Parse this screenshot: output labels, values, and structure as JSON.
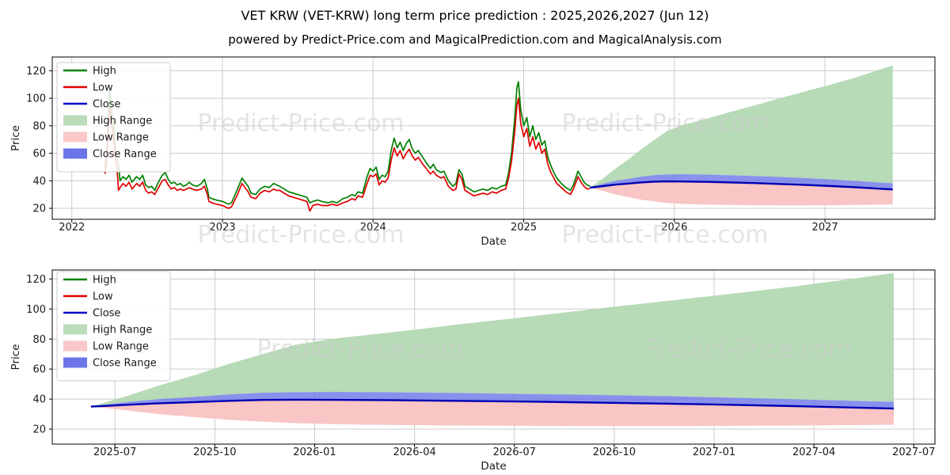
{
  "header": {
    "title": "VET KRW (VET-KRW) long term price prediction : 2025,2026,2027 (Jun 12)",
    "subtitle": "powered by Predict-Price.com and MagicalPrediction.com and MagicalAnalysis.com"
  },
  "watermark_text": "Predict-Price.com",
  "colors": {
    "high": "#008000",
    "low": "#e00000",
    "close": "#0000cd",
    "pred_close": "#0000b3",
    "high_range": "#b3d8b3",
    "low_range": "#f9c2c2",
    "close_range": "#6b76e8",
    "grid": "#cccccc",
    "axis": "#000000",
    "watermark": "#cdcdcd",
    "tick_text": "#1a1a1a"
  },
  "chart_data": [
    {
      "type": "line",
      "name": "full-history-and-prediction",
      "xlabel": "Date",
      "ylabel": "Price",
      "xlim": [
        2021.87,
        2027.73
      ],
      "ylim": [
        12,
        130
      ],
      "grid": true,
      "legend_position": "upper-left",
      "xticks": {
        "values": [
          2022,
          2023,
          2024,
          2025,
          2026,
          2027
        ],
        "labels": [
          "2022",
          "2023",
          "2024",
          "2025",
          "2026",
          "2027"
        ]
      },
      "yticks": [
        20,
        40,
        60,
        80,
        100,
        120
      ],
      "legend": [
        {
          "label": "High",
          "swatch": "line",
          "color": "#008000"
        },
        {
          "label": "Low",
          "swatch": "line",
          "color": "#e00000"
        },
        {
          "label": "Close",
          "swatch": "line",
          "color": "#0000cd"
        },
        {
          "label": "High Range",
          "swatch": "patch",
          "color": "#b3d8b3"
        },
        {
          "label": "Low Range",
          "swatch": "patch",
          "color": "#f9c2c2"
        },
        {
          "label": "Close Range",
          "swatch": "patch",
          "color": "#5b66e6"
        }
      ],
      "history_t_high_low": [
        [
          2022.22,
          50,
          45
        ],
        [
          2022.23,
          60,
          54
        ],
        [
          2022.24,
          80,
          70
        ],
        [
          2022.25,
          106,
          94
        ],
        [
          2022.26,
          97,
          86
        ],
        [
          2022.27,
          86,
          76
        ],
        [
          2022.28,
          78,
          68
        ],
        [
          2022.29,
          62,
          55
        ],
        [
          2022.3,
          56,
          49
        ],
        [
          2022.31,
          52,
          33
        ],
        [
          2022.32,
          40,
          35
        ],
        [
          2022.34,
          43,
          38
        ],
        [
          2022.36,
          41,
          36
        ],
        [
          2022.38,
          44,
          39
        ],
        [
          2022.4,
          39,
          34
        ],
        [
          2022.43,
          43,
          38
        ],
        [
          2022.45,
          41,
          36
        ],
        [
          2022.47,
          44,
          39
        ],
        [
          2022.49,
          37,
          33
        ],
        [
          2022.51,
          35,
          31
        ],
        [
          2022.53,
          36,
          32
        ],
        [
          2022.55,
          33,
          30
        ],
        [
          2022.57,
          38,
          34
        ],
        [
          2022.6,
          44,
          40
        ],
        [
          2022.62,
          46,
          41
        ],
        [
          2022.64,
          41,
          37
        ],
        [
          2022.66,
          38,
          34
        ],
        [
          2022.68,
          39,
          35
        ],
        [
          2022.7,
          37,
          33
        ],
        [
          2022.72,
          38,
          34
        ],
        [
          2022.74,
          36,
          33
        ],
        [
          2022.76,
          37,
          34
        ],
        [
          2022.78,
          39,
          35
        ],
        [
          2022.8,
          37,
          34
        ],
        [
          2022.83,
          36,
          33
        ],
        [
          2022.86,
          38,
          34
        ],
        [
          2022.88,
          41,
          36
        ],
        [
          2022.9,
          34,
          30
        ],
        [
          2022.91,
          28,
          25
        ],
        [
          2022.93,
          27,
          24
        ],
        [
          2022.96,
          26,
          23
        ],
        [
          2023.0,
          25,
          22
        ],
        [
          2023.04,
          23,
          20
        ],
        [
          2023.06,
          24,
          21
        ],
        [
          2023.1,
          34,
          30
        ],
        [
          2023.13,
          42,
          38
        ],
        [
          2023.15,
          39,
          35
        ],
        [
          2023.17,
          36,
          32
        ],
        [
          2023.19,
          31,
          28
        ],
        [
          2023.22,
          30,
          27
        ],
        [
          2023.25,
          34,
          31
        ],
        [
          2023.28,
          36,
          33
        ],
        [
          2023.31,
          35,
          32
        ],
        [
          2023.34,
          38,
          34
        ],
        [
          2023.36,
          37,
          33
        ],
        [
          2023.38,
          36,
          33
        ],
        [
          2023.41,
          34,
          31
        ],
        [
          2023.44,
          32,
          29
        ],
        [
          2023.47,
          31,
          28
        ],
        [
          2023.5,
          30,
          27
        ],
        [
          2023.53,
          29,
          26
        ],
        [
          2023.56,
          28,
          25
        ],
        [
          2023.58,
          24,
          18
        ],
        [
          2023.6,
          25,
          22
        ],
        [
          2023.63,
          26,
          23
        ],
        [
          2023.66,
          25,
          22
        ],
        [
          2023.7,
          24,
          22
        ],
        [
          2023.73,
          25,
          23
        ],
        [
          2023.76,
          24,
          22
        ],
        [
          2023.8,
          27,
          24
        ],
        [
          2023.83,
          28,
          25
        ],
        [
          2023.86,
          30,
          27
        ],
        [
          2023.88,
          29,
          26
        ],
        [
          2023.9,
          32,
          29
        ],
        [
          2023.93,
          31,
          28
        ],
        [
          2023.96,
          43,
          38
        ],
        [
          2023.98,
          49,
          44
        ],
        [
          2024.0,
          47,
          43
        ],
        [
          2024.02,
          50,
          45
        ],
        [
          2024.04,
          41,
          37
        ],
        [
          2024.06,
          44,
          40
        ],
        [
          2024.08,
          43,
          39
        ],
        [
          2024.1,
          47,
          42
        ],
        [
          2024.12,
          62,
          55
        ],
        [
          2024.14,
          71,
          64
        ],
        [
          2024.16,
          64,
          58
        ],
        [
          2024.18,
          68,
          62
        ],
        [
          2024.2,
          62,
          56
        ],
        [
          2024.22,
          67,
          60
        ],
        [
          2024.24,
          70,
          63
        ],
        [
          2024.26,
          63,
          58
        ],
        [
          2024.28,
          60,
          55
        ],
        [
          2024.3,
          62,
          57
        ],
        [
          2024.33,
          57,
          52
        ],
        [
          2024.36,
          52,
          48
        ],
        [
          2024.38,
          49,
          45
        ],
        [
          2024.4,
          52,
          47
        ],
        [
          2024.42,
          48,
          44
        ],
        [
          2024.45,
          46,
          42
        ],
        [
          2024.47,
          47,
          43
        ],
        [
          2024.5,
          40,
          36
        ],
        [
          2024.53,
          36,
          33
        ],
        [
          2024.55,
          38,
          34
        ],
        [
          2024.57,
          48,
          45
        ],
        [
          2024.59,
          45,
          41
        ],
        [
          2024.61,
          36,
          33
        ],
        [
          2024.64,
          34,
          31
        ],
        [
          2024.67,
          32,
          29
        ],
        [
          2024.7,
          33,
          30
        ],
        [
          2024.73,
          34,
          31
        ],
        [
          2024.76,
          33,
          30
        ],
        [
          2024.79,
          35,
          32
        ],
        [
          2024.82,
          34,
          31
        ],
        [
          2024.85,
          36,
          33
        ],
        [
          2024.88,
          37,
          34
        ],
        [
          2024.9,
          46,
          42
        ],
        [
          2024.92,
          61,
          55
        ],
        [
          2024.94,
          85,
          75
        ],
        [
          2024.955,
          108,
          95
        ],
        [
          2024.965,
          112,
          100
        ],
        [
          2024.98,
          92,
          82
        ],
        [
          2025.0,
          80,
          72
        ],
        [
          2025.02,
          86,
          78
        ],
        [
          2025.04,
          72,
          65
        ],
        [
          2025.06,
          80,
          72
        ],
        [
          2025.08,
          70,
          63
        ],
        [
          2025.1,
          75,
          68
        ],
        [
          2025.12,
          66,
          60
        ],
        [
          2025.14,
          69,
          63
        ],
        [
          2025.16,
          57,
          52
        ],
        [
          2025.18,
          51,
          46
        ],
        [
          2025.2,
          46,
          42
        ],
        [
          2025.22,
          42,
          38
        ],
        [
          2025.25,
          38,
          35
        ],
        [
          2025.28,
          35,
          32
        ],
        [
          2025.31,
          33,
          30
        ],
        [
          2025.33,
          37,
          34
        ],
        [
          2025.36,
          47,
          43
        ],
        [
          2025.38,
          43,
          39
        ],
        [
          2025.4,
          39,
          36
        ],
        [
          2025.42,
          37,
          34
        ],
        [
          2025.44,
          36,
          34.5
        ]
      ],
      "prediction": {
        "t": [
          2025.44,
          2025.53,
          2025.61,
          2025.7,
          2025.78,
          2025.87,
          2025.95,
          2026.04,
          2026.21,
          2026.37,
          2026.54,
          2026.7,
          2026.87,
          2027.04,
          2027.2,
          2027.37,
          2027.45
        ],
        "close": [
          35,
          36.2,
          37.2,
          38,
          38.8,
          39.4,
          39.6,
          39.5,
          39.2,
          38.8,
          38.3,
          37.7,
          37,
          36.2,
          35.3,
          34.2,
          33.7
        ],
        "close_upper": [
          35,
          38,
          40,
          41.5,
          43,
          44.2,
          44.6,
          44.8,
          44.5,
          44,
          43.4,
          42.8,
          42,
          41,
          39.9,
          38.7,
          38.2
        ],
        "high_upper": [
          35,
          42,
          49,
          56,
          63,
          70,
          76,
          80,
          85,
          90,
          95,
          100,
          105,
          110,
          115,
          121,
          124
        ],
        "low_lower": [
          35,
          32.5,
          30,
          28,
          26.3,
          25,
          24,
          23.3,
          22.7,
          22.4,
          22.2,
          22.1,
          22.1,
          22.2,
          22.4,
          22.7,
          22.9
        ]
      }
    },
    {
      "type": "line",
      "name": "prediction-zoom",
      "xlabel": "Date",
      "ylabel": "Price",
      "xlim": [
        2025.343,
        2027.553
      ],
      "ylim": [
        10,
        126
      ],
      "grid": true,
      "legend_position": "upper-left",
      "xticks": {
        "values": [
          2025.5,
          2025.75,
          2026.0,
          2026.25,
          2026.5,
          2026.75,
          2027.0,
          2027.25,
          2027.5
        ],
        "labels": [
          "2025-07",
          "2025-10",
          "2026-01",
          "2026-04",
          "2026-07",
          "2026-10",
          "2027-01",
          "2027-04",
          "2027-07"
        ]
      },
      "yticks": [
        20,
        40,
        60,
        80,
        100,
        120
      ],
      "legend": [
        {
          "label": "High",
          "swatch": "line",
          "color": "#008000"
        },
        {
          "label": "Low",
          "swatch": "line",
          "color": "#e00000"
        },
        {
          "label": "Close",
          "swatch": "line",
          "color": "#0000cd"
        },
        {
          "label": "High Range",
          "swatch": "patch",
          "color": "#b3d8b3"
        },
        {
          "label": "Low Range",
          "swatch": "patch",
          "color": "#f9c2c2"
        },
        {
          "label": "Close Range",
          "swatch": "patch",
          "color": "#5b66e6"
        }
      ],
      "prediction": {
        "t": [
          2025.44,
          2025.53,
          2025.61,
          2025.7,
          2025.78,
          2025.87,
          2025.95,
          2026.04,
          2026.21,
          2026.37,
          2026.54,
          2026.7,
          2026.87,
          2027.04,
          2027.2,
          2027.37,
          2027.45
        ],
        "close": [
          35,
          36.2,
          37.2,
          38,
          38.8,
          39.4,
          39.6,
          39.5,
          39.2,
          38.8,
          38.3,
          37.7,
          37,
          36.2,
          35.3,
          34.2,
          33.7
        ],
        "close_upper": [
          35,
          38,
          40,
          41.5,
          43,
          44.2,
          44.6,
          44.8,
          44.5,
          44,
          43.4,
          42.8,
          42,
          41,
          39.9,
          38.7,
          38.2
        ],
        "high_upper": [
          35,
          42,
          49,
          56,
          63,
          70,
          76,
          80,
          85,
          90,
          95,
          100,
          105,
          110,
          115,
          121,
          124
        ],
        "low_lower": [
          35,
          32.5,
          30,
          28,
          26.3,
          25,
          24,
          23.3,
          22.7,
          22.4,
          22.2,
          22.1,
          22.1,
          22.2,
          22.4,
          22.7,
          22.9
        ]
      }
    }
  ]
}
